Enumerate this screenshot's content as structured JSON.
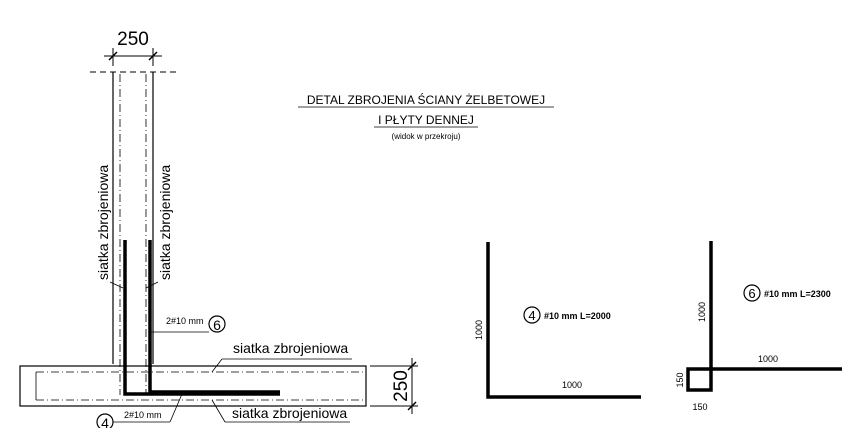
{
  "title": {
    "line1": "DETAL ZBROJENIA ŚCIANY ŻELBETOWEJ",
    "line2": "I PŁYTY DENNEJ",
    "line3": "(widok w przekroju)"
  },
  "section": {
    "wall_thickness": "250",
    "slab_thickness": "250",
    "mesh_label_left": "siatka zbrojeniowa",
    "mesh_label_right": "siatka zbrojeniowa",
    "mesh_label_top": "siatka zbrojeniowa",
    "mesh_label_bottom": "siatka zbrojeniowa",
    "bar6_callout": "2#10 mm",
    "bar6_marker": "6",
    "bar4_callout": "2#10 mm",
    "bar4_marker": "4"
  },
  "bar4": {
    "marker": "4",
    "spec": "#10 mm L=2000",
    "leg_vertical": "1000",
    "leg_horizontal": "1000"
  },
  "bar6": {
    "marker": "6",
    "spec": "#10 mm L=2300",
    "leg_vertical": "1000",
    "leg_horizontal": "1000",
    "hook_vertical": "150",
    "hook_horizontal": "150"
  }
}
